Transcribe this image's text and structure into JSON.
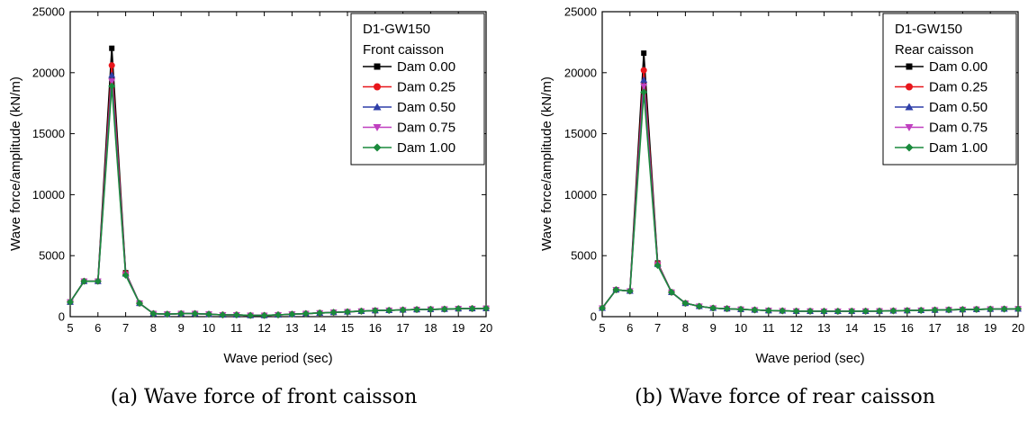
{
  "chart_data": [
    {
      "type": "line",
      "caption": "(a) Wave force of front caisson",
      "xlabel": "Wave period (sec)",
      "ylabel": "Wave force/amplitude (kN/m)",
      "xlim": [
        5,
        20
      ],
      "ylim": [
        0,
        25000
      ],
      "xticks": [
        5,
        6,
        7,
        8,
        9,
        10,
        11,
        12,
        13,
        14,
        15,
        16,
        17,
        18,
        19,
        20
      ],
      "yticks": [
        0,
        5000,
        10000,
        15000,
        20000,
        25000
      ],
      "legend": {
        "title_lines": [
          "D1-GW150",
          "Front caisson"
        ],
        "position": "top-right"
      },
      "x": [
        5,
        5.5,
        6,
        6.5,
        7,
        7.5,
        8,
        8.5,
        9,
        9.5,
        10,
        10.5,
        11,
        11.5,
        12,
        12.5,
        13,
        13.5,
        14,
        14.5,
        15,
        15.5,
        16,
        16.5,
        17,
        17.5,
        18,
        18.5,
        19,
        19.5,
        20
      ],
      "series": [
        {
          "name": "Dam 0.00",
          "color": "#000000",
          "marker": "square",
          "values": [
            1200,
            2900,
            2900,
            22000,
            3600,
            1100,
            250,
            200,
            250,
            250,
            200,
            150,
            150,
            100,
            100,
            150,
            200,
            250,
            300,
            350,
            400,
            450,
            500,
            520,
            550,
            580,
            600,
            620,
            650,
            660,
            680
          ]
        },
        {
          "name": "Dam 0.25",
          "color": "#e8161b",
          "marker": "circle",
          "values": [
            1200,
            2900,
            2900,
            20600,
            3550,
            1100,
            250,
            200,
            250,
            250,
            200,
            150,
            150,
            100,
            100,
            150,
            200,
            250,
            300,
            350,
            400,
            450,
            500,
            520,
            550,
            580,
            600,
            620,
            650,
            660,
            680
          ]
        },
        {
          "name": "Dam 0.50",
          "color": "#2f3fa8",
          "marker": "triangle-up",
          "values": [
            1200,
            2900,
            2900,
            19800,
            3500,
            1100,
            250,
            200,
            250,
            250,
            200,
            150,
            150,
            100,
            100,
            150,
            200,
            250,
            300,
            350,
            400,
            450,
            500,
            520,
            550,
            580,
            600,
            620,
            650,
            660,
            680
          ]
        },
        {
          "name": "Dam 0.75",
          "color": "#c040c0",
          "marker": "triangle-down",
          "values": [
            1200,
            2900,
            2900,
            19300,
            3450,
            1100,
            250,
            200,
            250,
            250,
            200,
            150,
            150,
            100,
            100,
            150,
            200,
            250,
            300,
            350,
            400,
            450,
            500,
            520,
            550,
            580,
            600,
            620,
            650,
            660,
            680
          ]
        },
        {
          "name": "Dam 1.00",
          "color": "#1a8a3c",
          "marker": "diamond",
          "values": [
            1200,
            2900,
            2900,
            18900,
            3400,
            1100,
            250,
            200,
            250,
            250,
            200,
            150,
            150,
            100,
            100,
            150,
            200,
            250,
            300,
            350,
            400,
            450,
            500,
            520,
            550,
            580,
            600,
            620,
            650,
            660,
            680
          ]
        }
      ]
    },
    {
      "type": "line",
      "caption": "(b) Wave force of rear caisson",
      "xlabel": "Wave period (sec)",
      "ylabel": "Wave force/amplitude (kN/m)",
      "xlim": [
        5,
        20
      ],
      "ylim": [
        0,
        25000
      ],
      "xticks": [
        5,
        6,
        7,
        8,
        9,
        10,
        11,
        12,
        13,
        14,
        15,
        16,
        17,
        18,
        19,
        20
      ],
      "yticks": [
        0,
        5000,
        10000,
        15000,
        20000,
        25000
      ],
      "legend": {
        "title_lines": [
          "D1-GW150",
          "Rear caisson"
        ],
        "position": "top-right"
      },
      "x": [
        5,
        5.5,
        6,
        6.5,
        7,
        7.5,
        8,
        8.5,
        9,
        9.5,
        10,
        10.5,
        11,
        11.5,
        12,
        12.5,
        13,
        13.5,
        14,
        14.5,
        15,
        15.5,
        16,
        16.5,
        17,
        17.5,
        18,
        18.5,
        19,
        19.5,
        20
      ],
      "series": [
        {
          "name": "Dam 0.00",
          "color": "#000000",
          "marker": "square",
          "values": [
            700,
            2200,
            2100,
            21600,
            4400,
            2000,
            1100,
            850,
            700,
            650,
            600,
            550,
            500,
            480,
            450,
            450,
            440,
            440,
            450,
            450,
            460,
            480,
            500,
            520,
            540,
            560,
            580,
            600,
            620,
            630,
            640
          ]
        },
        {
          "name": "Dam 0.25",
          "color": "#e8161b",
          "marker": "circle",
          "values": [
            700,
            2200,
            2100,
            20200,
            4350,
            2000,
            1100,
            850,
            700,
            650,
            600,
            550,
            500,
            480,
            450,
            450,
            440,
            440,
            450,
            450,
            460,
            480,
            500,
            520,
            540,
            560,
            580,
            600,
            620,
            630,
            640
          ]
        },
        {
          "name": "Dam 0.50",
          "color": "#2f3fa8",
          "marker": "triangle-up",
          "values": [
            700,
            2200,
            2100,
            19400,
            4300,
            2000,
            1100,
            850,
            700,
            650,
            600,
            550,
            500,
            480,
            450,
            450,
            440,
            440,
            450,
            450,
            460,
            480,
            500,
            520,
            540,
            560,
            580,
            600,
            620,
            630,
            640
          ]
        },
        {
          "name": "Dam 0.75",
          "color": "#c040c0",
          "marker": "triangle-down",
          "values": [
            700,
            2200,
            2100,
            18900,
            4250,
            2000,
            1100,
            850,
            700,
            650,
            600,
            550,
            500,
            480,
            450,
            450,
            440,
            440,
            450,
            450,
            460,
            480,
            500,
            520,
            540,
            560,
            580,
            600,
            620,
            630,
            640
          ]
        },
        {
          "name": "Dam 1.00",
          "color": "#1a8a3c",
          "marker": "diamond",
          "values": [
            700,
            2200,
            2100,
            18400,
            4200,
            2000,
            1100,
            850,
            700,
            650,
            600,
            550,
            500,
            480,
            450,
            450,
            440,
            440,
            450,
            450,
            460,
            480,
            500,
            520,
            540,
            560,
            580,
            600,
            620,
            630,
            640
          ]
        }
      ]
    }
  ]
}
